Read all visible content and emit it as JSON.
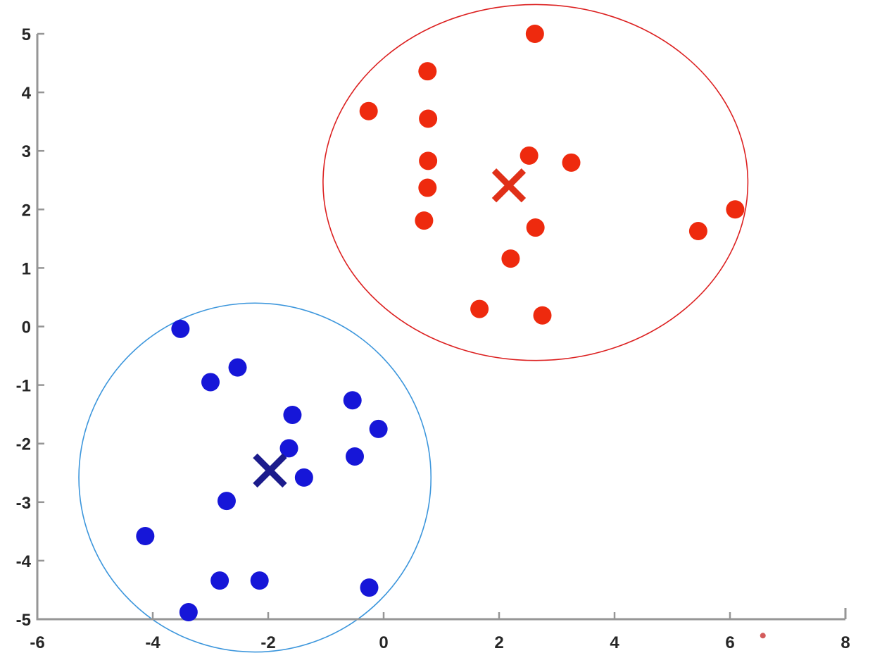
{
  "figure": {
    "background": "#ffffff",
    "axis_color": "#969696",
    "tick_label_color": "#262626",
    "title": ""
  },
  "chart_data": {
    "type": "scatter",
    "title": "",
    "subtitle": "",
    "xlabel": "",
    "ylabel": "",
    "xlim": [
      -6,
      8
    ],
    "ylim": [
      -5,
      5
    ],
    "x_ticks": [
      -6,
      -4,
      -2,
      0,
      2,
      4,
      6,
      8
    ],
    "y_ticks": [
      -5,
      -4,
      -3,
      -2,
      -1,
      0,
      1,
      2,
      3,
      4,
      5
    ],
    "grid": false,
    "legend_position": "none",
    "series": [
      {
        "name": "cluster-red",
        "marker": "circle",
        "color": "#ee2a0e",
        "points": [
          [
            2.62,
            5.0
          ],
          [
            0.76,
            4.36
          ],
          [
            -0.26,
            3.68
          ],
          [
            0.77,
            3.55
          ],
          [
            0.77,
            2.83
          ],
          [
            0.76,
            2.37
          ],
          [
            2.52,
            2.92
          ],
          [
            3.25,
            2.8
          ],
          [
            0.7,
            1.81
          ],
          [
            2.63,
            1.69
          ],
          [
            2.2,
            1.16
          ],
          [
            1.66,
            0.3
          ],
          [
            2.75,
            0.19
          ],
          [
            5.45,
            1.63
          ],
          [
            6.09,
            2.0
          ]
        ]
      },
      {
        "name": "cluster-blue",
        "marker": "circle",
        "color": "#1616d8",
        "points": [
          [
            -3.52,
            -0.04
          ],
          [
            -2.53,
            -0.7
          ],
          [
            -3.0,
            -0.95
          ],
          [
            -1.58,
            -1.51
          ],
          [
            -0.54,
            -1.26
          ],
          [
            -0.09,
            -1.75
          ],
          [
            -1.64,
            -2.08
          ],
          [
            -0.5,
            -2.22
          ],
          [
            -1.38,
            -2.58
          ],
          [
            -2.72,
            -2.98
          ],
          [
            -4.13,
            -3.58
          ],
          [
            -2.84,
            -4.34
          ],
          [
            -2.15,
            -4.34
          ],
          [
            -3.38,
            -4.88
          ],
          [
            -0.25,
            -4.46
          ]
        ]
      }
    ],
    "centroids": [
      {
        "name": "centroid-red",
        "x": 2.17,
        "y": 2.41,
        "color": "#e03018"
      },
      {
        "name": "centroid-blue",
        "x": -1.97,
        "y": -2.46,
        "color": "#1c1c8c"
      }
    ],
    "cluster_boundaries": [
      {
        "name": "red-cluster-ellipse",
        "cx": 2.63,
        "cy": 2.46,
        "rx": 3.68,
        "ry": 3.04,
        "color": "#dc2020"
      },
      {
        "name": "blue-cluster-circle",
        "cx": -2.23,
        "cy": -2.58,
        "rx": 3.05,
        "ry": 2.98,
        "color": "#3c96dc"
      }
    ],
    "artifacts": [
      {
        "name": "red-speck",
        "x": 6.57,
        "y": -5.28,
        "color": "#cc4040"
      }
    ]
  }
}
